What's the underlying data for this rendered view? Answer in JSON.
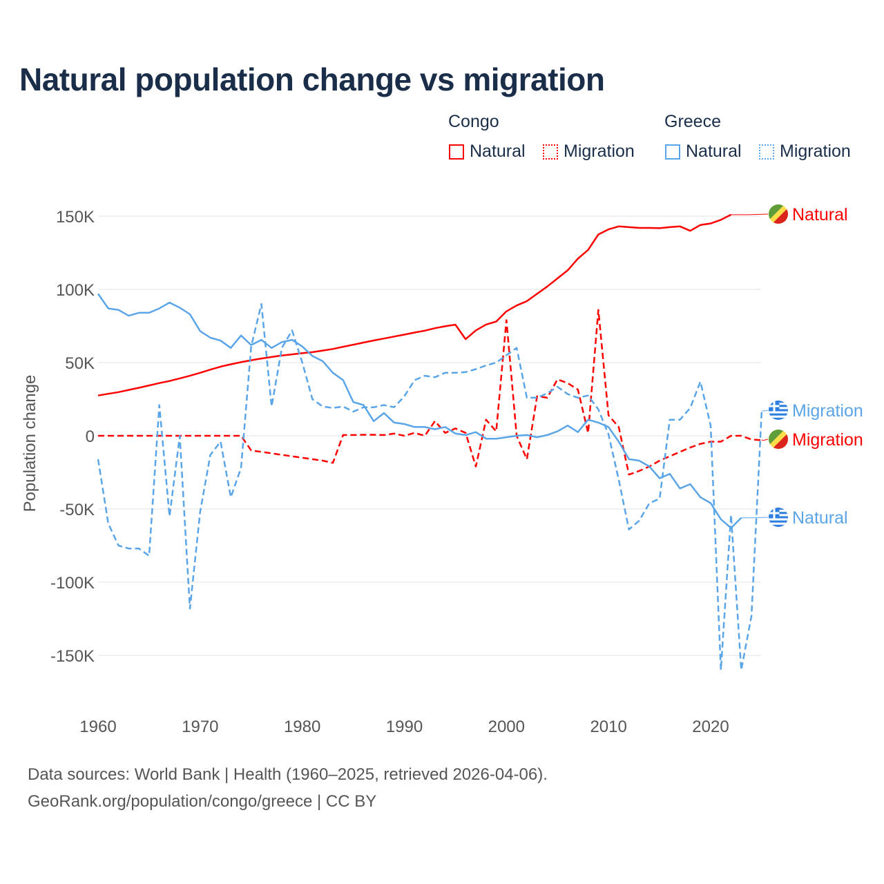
{
  "chart_data": {
    "type": "line",
    "title": "Natural population change vs migration",
    "ylabel": "Population change",
    "xlabel": "",
    "ylim": [
      -165000,
      160000
    ],
    "xlim": [
      1960,
      2025
    ],
    "grid": true,
    "x_ticks": [
      1960,
      1970,
      1980,
      1990,
      2000,
      2010,
      2020
    ],
    "x_tick_labels": [
      "1960",
      "1970",
      "1980",
      "1990",
      "2000",
      "2010",
      "2020"
    ],
    "y_ticks": [
      150000,
      100000,
      50000,
      0,
      -50000,
      -100000,
      -150000
    ],
    "y_tick_labels": [
      "150K",
      "100K",
      "50K",
      "0",
      "-50K",
      "-100K",
      "-150K"
    ],
    "legend": {
      "placement": "top-right",
      "groups": [
        {
          "name": "Congo",
          "items": [
            "Natural",
            "Migration"
          ]
        },
        {
          "name": "Greece",
          "items": [
            "Natural",
            "Migration"
          ]
        }
      ]
    },
    "series": [
      {
        "name": "Congo Natural",
        "country": "Congo",
        "kind": "Natural",
        "label": "Natural",
        "color": "#ff0000",
        "dash": false,
        "start": 1960,
        "values": [
          27500,
          28700,
          29800,
          31300,
          32800,
          34400,
          36000,
          37400,
          39200,
          41000,
          43000,
          45200,
          47200,
          48800,
          50300,
          51600,
          52800,
          53800,
          54800,
          55600,
          56400,
          57100,
          58200,
          59300,
          60800,
          62200,
          63700,
          65100,
          66400,
          67800,
          69100,
          70500,
          71800,
          73500,
          74800,
          75900,
          66000,
          72000,
          76000,
          78000,
          85000,
          89000,
          92000,
          97000,
          102000,
          107500,
          113000,
          121000,
          127000,
          137500,
          141000,
          143000,
          142500,
          142000,
          142000,
          141800,
          142500,
          143000,
          140000,
          144000,
          145000,
          147500,
          151000
        ]
      },
      {
        "name": "Congo Migration",
        "country": "Congo",
        "kind": "Migration",
        "label": "Migration",
        "color": "#ff0000",
        "dash": true,
        "start": 1960,
        "values": [
          0,
          0,
          0,
          0,
          0,
          0,
          0,
          0,
          0,
          0,
          0,
          0,
          0,
          0,
          0,
          -10000,
          -11000,
          -12000,
          -13000,
          -14000,
          -15000,
          -16000,
          -17000,
          -18500,
          500,
          500,
          700,
          700,
          500,
          1500,
          0,
          2000,
          0,
          10000,
          2000,
          5000,
          2000,
          -21000,
          11000,
          3000,
          79000,
          0,
          -16000,
          27000,
          26000,
          38500,
          36000,
          31500,
          2000,
          86000,
          14000,
          6000,
          -26500,
          -24000,
          -21000,
          -17000,
          -14000,
          -11000,
          -8000,
          -5500,
          -4000,
          -4000,
          0,
          0,
          -2500,
          -3000
        ]
      },
      {
        "name": "Greece Natural",
        "country": "Greece",
        "kind": "Natural",
        "label": "Natural",
        "color": "#5aa5e8",
        "dash": false,
        "start": 1960,
        "values": [
          97000,
          87000,
          86000,
          82000,
          84000,
          84000,
          87000,
          91000,
          87500,
          83000,
          71500,
          67000,
          65000,
          60000,
          68500,
          62000,
          65500,
          60000,
          64000,
          65500,
          61000,
          54500,
          51000,
          43000,
          38000,
          23000,
          21000,
          10000,
          15500,
          9000,
          8000,
          6000,
          6000,
          4500,
          6000,
          1500,
          500,
          2500,
          -2000,
          -2000,
          -1000,
          0,
          500,
          -1000,
          500,
          3000,
          7000,
          2500,
          11000,
          9000,
          6000,
          -4000,
          -16000,
          -17000,
          -21000,
          -29000,
          -26000,
          -36000,
          -33000,
          -42000,
          -46000,
          -57000,
          -63000,
          -56000
        ]
      },
      {
        "name": "Greece Migration",
        "country": "Greece",
        "kind": "Migration",
        "label": "Migration",
        "color": "#5aa5e8",
        "dash": true,
        "start": 1960,
        "values": [
          -16000,
          -60000,
          -75000,
          -77000,
          -77000,
          -82000,
          21000,
          -55000,
          0,
          -118000,
          -52000,
          -13000,
          -4000,
          -42000,
          -22000,
          61000,
          90000,
          20000,
          60000,
          72000,
          50000,
          25000,
          20000,
          19000,
          20000,
          16500,
          19500,
          19500,
          21000,
          19500,
          27000,
          38000,
          41000,
          40000,
          43000,
          43000,
          43500,
          45500,
          48000,
          50000,
          55000,
          60000,
          26000,
          26000,
          29000,
          33500,
          28500,
          26000,
          27500,
          18000,
          1000,
          -30000,
          -64000,
          -58000,
          -46000,
          -43000,
          11000,
          11000,
          19000,
          37000,
          7000,
          -160000,
          -54000,
          -160000,
          -123000,
          17000
        ]
      }
    ]
  },
  "footer": {
    "line1": "Data sources: World Bank | Health (1960–2025, retrieved 2026-04-06).",
    "line2": "GeoRank.org/population/congo/greece | CC BY"
  }
}
